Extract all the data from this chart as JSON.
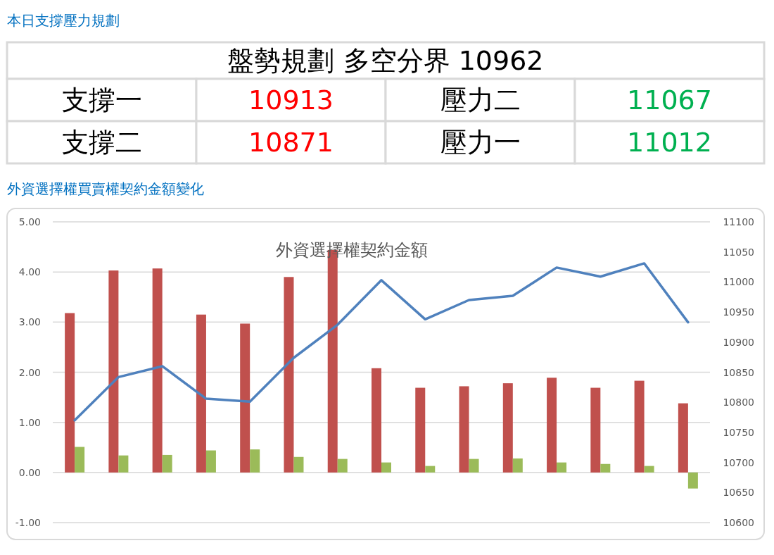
{
  "chart_data": [
    {
      "type": "other",
      "title": "本日支撐壓力規劃",
      "annotations": [
        "盤勢規劃 多空分界 10962",
        "支撐一",
        "10913",
        "壓力二",
        "11067",
        "支撐二",
        "10871",
        "壓力一",
        "11012"
      ],
      "colors": [
        "#000000",
        "#000000",
        "#ff0000",
        "#000000",
        "#00b050",
        "#000000",
        "#ff0000",
        "#000000",
        "#00b050"
      ]
    },
    {
      "type": "bar",
      "title": "外資選擇權契約金額",
      "subtitle": "外資選擇權買賣權契約金額變化",
      "categories": [
        null,
        null,
        null,
        null,
        null,
        null,
        null,
        null,
        null,
        null,
        null,
        null,
        null,
        null,
        null
      ],
      "series": [
        {
          "color": "#c0504d",
          "values": [
            3.18,
            4.03,
            4.07,
            3.15,
            2.97,
            3.9,
            4.44,
            2.08,
            1.69,
            1.72,
            1.78,
            1.89,
            1.69,
            1.83,
            1.38
          ]
        },
        {
          "color": "#9bbb59",
          "values": [
            0.51,
            0.34,
            0.35,
            0.44,
            0.46,
            0.31,
            0.27,
            0.2,
            0.13,
            0.27,
            0.28,
            0.2,
            0.17,
            0.13,
            -0.32
          ]
        },
        {
          "type": "line",
          "axis": "y2",
          "color": "#4f81bd",
          "values": [
            10770,
            10842,
            10860,
            10806,
            10801,
            10874,
            10929,
            11003,
            10938,
            10970,
            10977,
            11024,
            11009,
            11031,
            10933
          ]
        }
      ],
      "ylim": [
        -1,
        5
      ],
      "yticks": [
        {
          "value": -1,
          "label": "-1.00"
        },
        {
          "value": 0,
          "label": "0.00"
        },
        {
          "value": 1,
          "label": "1.00"
        },
        {
          "value": 2,
          "label": "2.00"
        },
        {
          "value": 3,
          "label": "3.00"
        },
        {
          "value": 4,
          "label": "4.00"
        },
        {
          "value": 5,
          "label": "5.00"
        }
      ],
      "y2lim": [
        10600,
        11100
      ],
      "y2ticks": [
        10600,
        10650,
        10700,
        10750,
        10800,
        10850,
        10900,
        10950,
        11000,
        11050,
        11100
      ],
      "grid": "y"
    }
  ]
}
